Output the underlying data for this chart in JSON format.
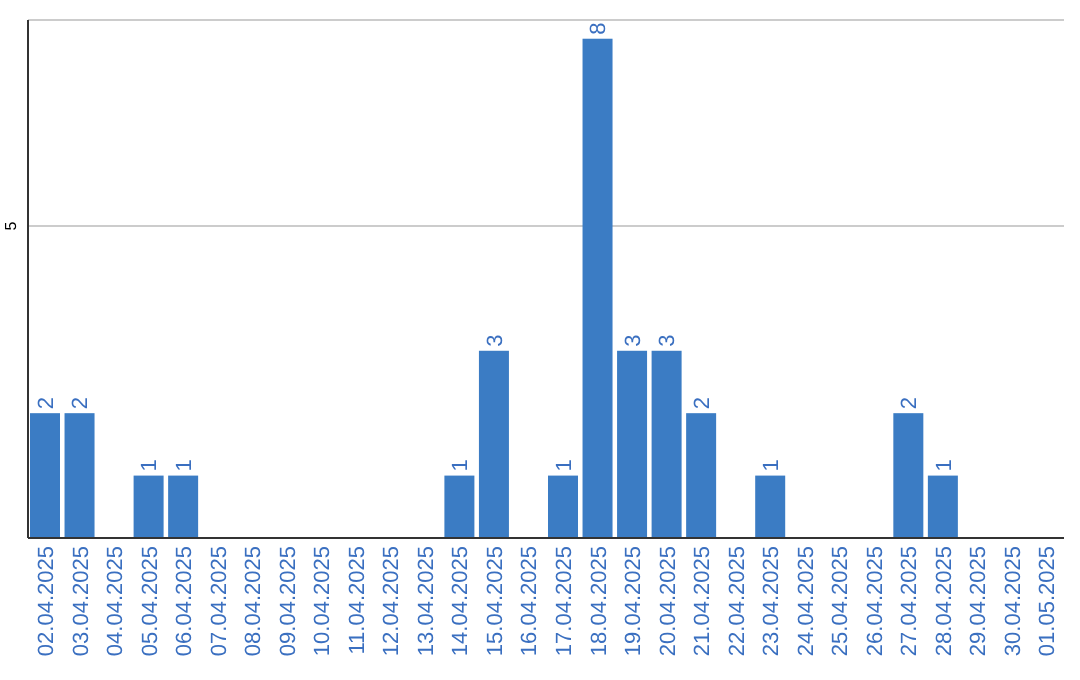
{
  "chart_data": {
    "type": "bar",
    "categories": [
      "02.04.2025",
      "03.04.2025",
      "04.04.2025",
      "05.04.2025",
      "06.04.2025",
      "07.04.2025",
      "08.04.2025",
      "09.04.2025",
      "10.04.2025",
      "11.04.2025",
      "12.04.2025",
      "13.04.2025",
      "14.04.2025",
      "15.04.2025",
      "16.04.2025",
      "17.04.2025",
      "18.04.2025",
      "19.04.2025",
      "20.04.2025",
      "21.04.2025",
      "22.04.2025",
      "23.04.2025",
      "24.04.2025",
      "25.04.2025",
      "26.04.2025",
      "27.04.2025",
      "28.04.2025",
      "29.04.2025",
      "30.04.2025",
      "01.05.2025"
    ],
    "values": [
      2,
      2,
      0,
      1,
      1,
      0,
      0,
      0,
      0,
      0,
      0,
      0,
      1,
      3,
      0,
      1,
      8,
      3,
      3,
      2,
      0,
      1,
      0,
      0,
      0,
      2,
      1,
      0,
      0,
      0
    ],
    "value_labels": [
      "2",
      "2",
      null,
      "1",
      "1",
      null,
      null,
      null,
      null,
      null,
      null,
      null,
      "1",
      "3",
      null,
      "1",
      "8",
      "3",
      "3",
      "2",
      null,
      "1",
      null,
      null,
      null,
      "2",
      "1",
      null,
      null,
      null
    ],
    "color": "#3b7cc4",
    "ylim": [
      0,
      8.3
    ],
    "yticks": [
      5
    ],
    "grid": "y"
  }
}
